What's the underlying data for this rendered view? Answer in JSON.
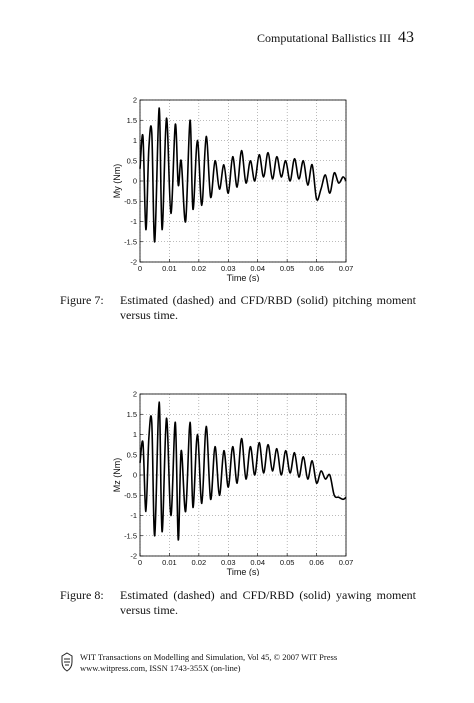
{
  "header": {
    "title": "Computational Ballistics III",
    "page": "43"
  },
  "figures": [
    {
      "label": "Figure 7:",
      "caption": "Estimated (dashed) and CFD/RBD (solid) pitching moment versus time.",
      "chart_data": {
        "type": "line",
        "xlabel": "Time (s)",
        "ylabel": "My (Nm)",
        "xlim": [
          0,
          0.07
        ],
        "ylim": [
          -2,
          2
        ],
        "xticks": [
          "0",
          "0.01",
          "0.02",
          "0.03",
          "0.04",
          "0.05",
          "0.06",
          "0.07"
        ],
        "yticks": [
          "2",
          "1.5",
          "1",
          "0.5",
          "0",
          "-0.5",
          "-1",
          "-1.5",
          "-2"
        ],
        "grid": true,
        "series": [
          {
            "x": [
              0,
              0.001,
              0.002,
              0.003,
              0.004,
              0.005,
              0.0065,
              0.0075,
              0.009,
              0.0105,
              0.012,
              0.013,
              0.014,
              0.0155,
              0.017,
              0.018,
              0.0195,
              0.021,
              0.0225,
              0.024,
              0.0255,
              0.027,
              0.0285,
              0.03,
              0.0315,
              0.033,
              0.0345,
              0.036,
              0.0375,
              0.039,
              0.0405,
              0.042,
              0.0435,
              0.045,
              0.0465,
              0.048,
              0.0495,
              0.051,
              0.0525,
              0.054,
              0.0555,
              0.057,
              0.0585,
              0.06,
              0.0615,
              0.063,
              0.0645,
              0.066,
              0.0675,
              0.069,
              0.07
            ],
            "y": [
              0.3,
              1.1,
              -1.2,
              0.8,
              1.2,
              -1.5,
              1.8,
              -1.2,
              1.55,
              -0.8,
              1.4,
              -0.1,
              0.5,
              -1.0,
              1.5,
              -0.7,
              1.0,
              -0.6,
              1.1,
              -0.4,
              0.5,
              -0.2,
              0.4,
              -0.3,
              0.6,
              -0.15,
              0.75,
              -0.05,
              0.5,
              0.0,
              0.65,
              0.1,
              0.7,
              0.05,
              0.6,
              0.1,
              0.5,
              0.0,
              0.55,
              0.05,
              0.5,
              -0.1,
              0.4,
              -0.45,
              -0.2,
              0.15,
              -0.3,
              0.2,
              -0.05,
              0.1,
              0.0
            ]
          }
        ]
      }
    },
    {
      "label": "Figure 8:",
      "caption": "Estimated (dashed) and CFD/RBD (solid) yawing moment versus time.",
      "chart_data": {
        "type": "line",
        "xlabel": "Time (s)",
        "ylabel": "Mz (Nm)",
        "xlim": [
          0,
          0.07
        ],
        "ylim": [
          -2,
          2
        ],
        "xticks": [
          "0",
          "0.01",
          "0.02",
          "0.03",
          "0.04",
          "0.05",
          "0.06",
          "0.07"
        ],
        "yticks": [
          "2",
          "1.5",
          "1",
          "0.5",
          "0",
          "-0.5",
          "-1",
          "-1.5",
          "-2"
        ],
        "grid": true,
        "series": [
          {
            "x": [
              0,
              0.001,
              0.002,
              0.003,
              0.004,
              0.005,
              0.0065,
              0.0075,
              0.009,
              0.0105,
              0.012,
              0.013,
              0.014,
              0.0155,
              0.017,
              0.018,
              0.0195,
              0.021,
              0.0225,
              0.024,
              0.0255,
              0.027,
              0.0285,
              0.03,
              0.0315,
              0.033,
              0.0345,
              0.036,
              0.0375,
              0.039,
              0.0405,
              0.042,
              0.0435,
              0.045,
              0.0465,
              0.048,
              0.0495,
              0.051,
              0.0525,
              0.054,
              0.0555,
              0.057,
              0.0585,
              0.06,
              0.0615,
              0.063,
              0.0645,
              0.066,
              0.0675,
              0.069,
              0.07
            ],
            "y": [
              0.3,
              0.8,
              -0.9,
              0.9,
              1.3,
              -1.5,
              1.8,
              -1.4,
              1.4,
              -1.0,
              1.3,
              -1.6,
              0.6,
              -0.9,
              1.3,
              -0.8,
              1.0,
              -0.7,
              1.2,
              -0.6,
              0.7,
              -0.5,
              0.6,
              -0.3,
              0.7,
              -0.2,
              0.9,
              -0.1,
              0.7,
              0.0,
              0.8,
              0.05,
              0.75,
              0.1,
              0.65,
              0.0,
              0.6,
              0.05,
              0.55,
              -0.05,
              0.45,
              -0.1,
              0.35,
              -0.2,
              0.1,
              -0.1,
              0.0,
              -0.5,
              -0.55,
              -0.6,
              -0.55
            ]
          }
        ]
      }
    }
  ],
  "footer": {
    "line1": "WIT Transactions on Modelling and Simulation, Vol 45,  © 2007 WIT Press",
    "line2": "www.witpress.com, ISSN 1743-355X (on-line)"
  }
}
